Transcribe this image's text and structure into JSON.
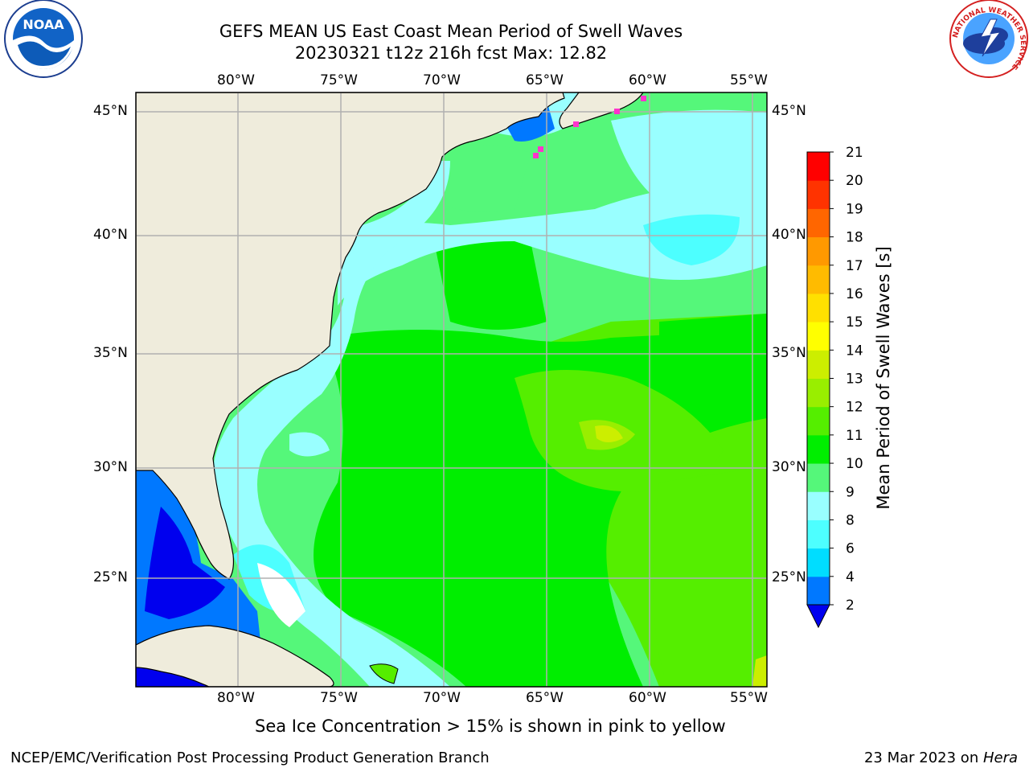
{
  "title": {
    "line1": "GEFS MEAN US East Coast Mean Period of Swell Waves",
    "line2": "20230321 t12z 216h fcst   Max: 12.82"
  },
  "map": {
    "lon_labels": [
      "80°W",
      "75°W",
      "70°W",
      "65°W",
      "60°W",
      "55°W"
    ],
    "lat_labels": [
      "45°N",
      "40°N",
      "35°N",
      "30°N",
      "25°N"
    ],
    "lon_range": [
      -85,
      -54
    ],
    "lat_range": [
      20.5,
      45.8
    ],
    "land_color": "#efecdc",
    "grid_color": "#b0b0b0"
  },
  "colorbar": {
    "label": "Mean Period of Swell Waves [s]",
    "ticks": [
      "2",
      "4",
      "6",
      "8",
      "9",
      "10",
      "11",
      "12",
      "13",
      "14",
      "15",
      "16",
      "17",
      "18",
      "19",
      "20",
      "21"
    ],
    "colors": [
      "#0078ff",
      "#00ddff",
      "#4dffff",
      "#99ffff",
      "#55f77a",
      "#00ee00",
      "#55ee00",
      "#99ee00",
      "#ccee00",
      "#ffff00",
      "#ffe000",
      "#ffbb00",
      "#ff9900",
      "#ff6600",
      "#ff3300",
      "#ff0000"
    ],
    "extend_color": "#0000ee"
  },
  "notes": {
    "sea_ice": "Sea Ice Concentration > 15% is shown in pink to yellow"
  },
  "footer": {
    "left": "NCEP/EMC/Verification Post Processing Product Generation Branch",
    "date": "23 Mar 2023 on ",
    "host": "Hera"
  },
  "logos": {
    "noaa": "NOAA",
    "nws": "NATIONAL WEATHER SERVICE"
  }
}
